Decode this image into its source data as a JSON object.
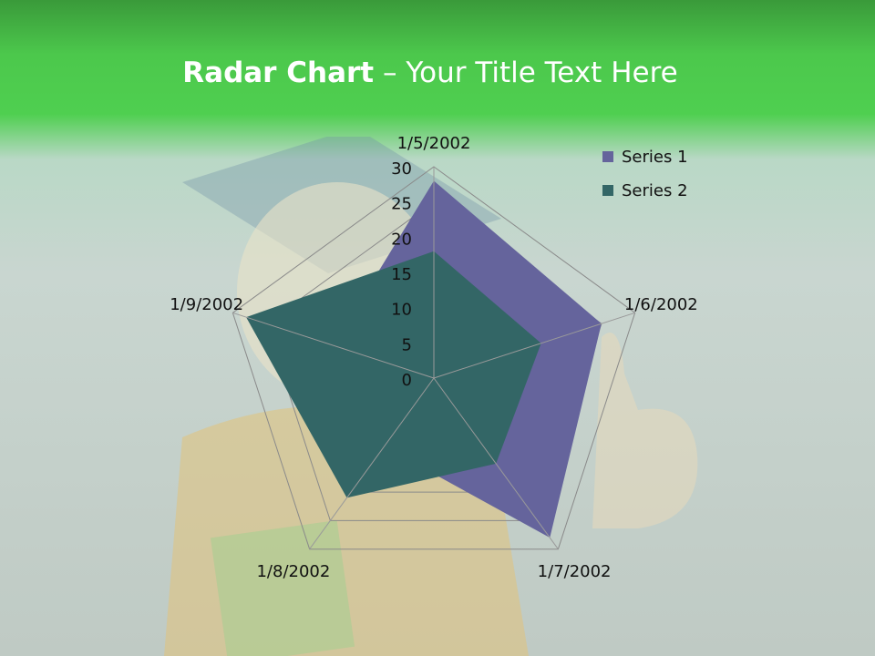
{
  "title": {
    "bold": "Radar Chart",
    "rest": " – Your Title Text Here"
  },
  "chart_data": {
    "type": "radar",
    "categories": [
      "1/5/2002",
      "1/6/2002",
      "1/7/2002",
      "1/8/2002",
      "1/9/2002"
    ],
    "series": [
      {
        "name": "Series 1",
        "values": [
          28,
          25,
          28,
          12,
          15
        ],
        "color": "#65649c"
      },
      {
        "name": "Series 2",
        "values": [
          18,
          16,
          15,
          21,
          28
        ],
        "color": "#336666"
      }
    ],
    "rlim": [
      0,
      30
    ],
    "ticks": [
      "0",
      "5",
      "10",
      "15",
      "20",
      "25",
      "30"
    ],
    "legend": "top-right",
    "grid": true
  }
}
